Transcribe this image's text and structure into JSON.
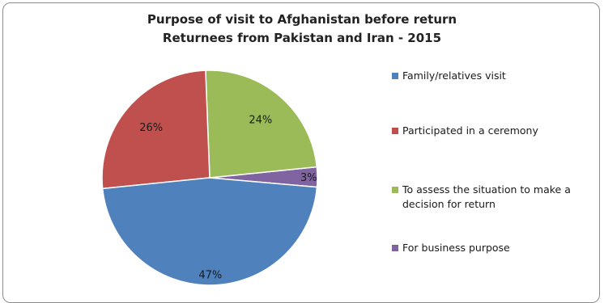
{
  "chart_data": {
    "type": "pie",
    "title": "Purpose of visit to Afghanistan before return",
    "subtitle": "Returnees from Pakistan and Iran - 2015",
    "slices": [
      {
        "label": "Family/relatives visit",
        "value": 47,
        "value_label": "47%",
        "color": "#4f81bd"
      },
      {
        "label": "Participated in a ceremony",
        "value": 26,
        "value_label": "26%",
        "color": "#c0504d"
      },
      {
        "label": "To assess the situation to make a decision for return",
        "value": 24,
        "value_label": "24%",
        "color": "#9bbb59"
      },
      {
        "label": "For business purpose",
        "value": 3,
        "value_label": "3%",
        "color": "#8064a2"
      }
    ],
    "legend_position": "right"
  }
}
